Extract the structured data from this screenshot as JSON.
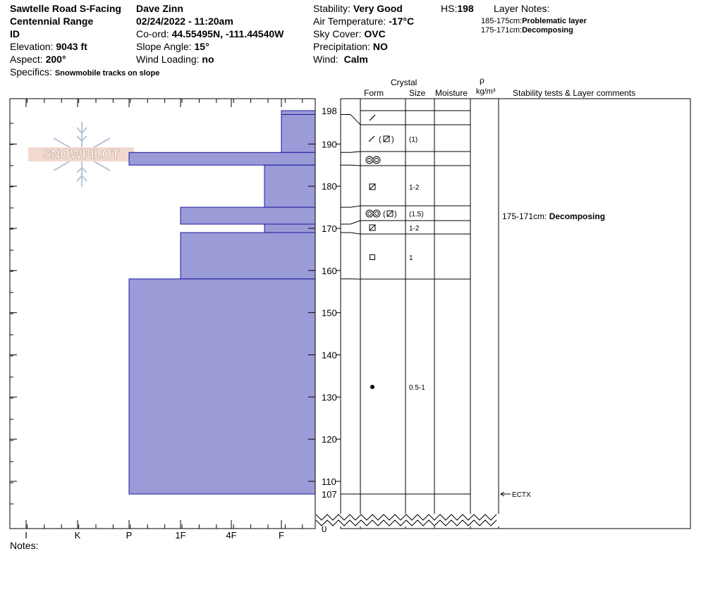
{
  "header": {
    "location": "Sawtelle Road S-Facing",
    "range": "Centennial Range",
    "state": "ID",
    "elevation_label": "Elevation:",
    "elevation": "9043 ft",
    "aspect_label": "Aspect:",
    "aspect": "200°",
    "specifics_label": "Specifics:",
    "specifics": "Snowmobile tracks on slope",
    "observer": "Dave Zinn",
    "datetime": "02/24/2022 - 11:20am",
    "coord_label": "Co-ord:",
    "coord": "44.55495N, -111.44540W",
    "slope_label": "Slope Angle:",
    "slope": "15°",
    "wind_loading_label": "Wind Loading:",
    "wind_loading": "no",
    "stability_label": "Stability:",
    "stability": "Very Good",
    "air_temp_label": "Air Temperature:",
    "air_temp": "-17°C",
    "sky_label": "Sky Cover:",
    "sky": "OVC",
    "precip_label": "Precipitation:",
    "precip": "NO",
    "wind_label": "Wind:",
    "wind": "Calm",
    "hs_label": "HS:",
    "hs": "198",
    "layer_notes_label": "Layer Notes:",
    "layer_notes": [
      {
        "range": "185-175cm:",
        "note": "Problematic layer"
      },
      {
        "range": "175-171cm:",
        "note": "Decomposing"
      }
    ]
  },
  "table_headers": {
    "crystal": "Crystal",
    "form": "Form",
    "size": "Size",
    "moisture": "Moisture",
    "rho": "ρ",
    "density_unit": "kg/m³",
    "comments": "Stability tests & Layer comments"
  },
  "logo_text": "SNOWPILOT",
  "notes_label": "Notes:",
  "colors": {
    "hardness_fill": "#9b9bd8",
    "hardness_edge": "#1a1a9c"
  },
  "chart_data": {
    "type": "bar",
    "subtype": "snow hardness profile",
    "hardness_scale": [
      "I",
      "K",
      "P",
      "1F",
      "4F",
      "F"
    ],
    "depth_ticks": [
      110,
      120,
      130,
      140,
      150,
      160,
      170,
      180,
      190
    ],
    "depth_labels_special": [
      198,
      107,
      0
    ],
    "total_depth": 198,
    "layers": [
      {
        "top": 198,
        "bottom": 197,
        "hardness": "F"
      },
      {
        "top": 197,
        "bottom": 188,
        "hardness": "F"
      },
      {
        "top": 188,
        "bottom": 185,
        "hardness": "P"
      },
      {
        "top": 185,
        "bottom": 175,
        "hardness": "F+"
      },
      {
        "top": 175,
        "bottom": 171,
        "hardness": "1F"
      },
      {
        "top": 171,
        "bottom": 169,
        "hardness": "F+"
      },
      {
        "top": 169,
        "bottom": 158,
        "hardness": "1F"
      },
      {
        "top": 158,
        "bottom": 107,
        "hardness": "P"
      }
    ],
    "crystals": [
      {
        "layer_top": 198,
        "layer_bottom": 197,
        "form": "precip-frag",
        "size": ""
      },
      {
        "layer_top": 197,
        "layer_bottom": 188,
        "form": "precip-frag (facet-rounded)",
        "size": "(1)"
      },
      {
        "layer_top": 188,
        "layer_bottom": 185,
        "form": "melt-freeze",
        "size": ""
      },
      {
        "layer_top": 185,
        "layer_bottom": 175,
        "form": "facet-rounded",
        "size": "1-2"
      },
      {
        "layer_top": 175,
        "layer_bottom": 171,
        "form": "melt-freeze (facet-rounded)",
        "size": "(1.5)"
      },
      {
        "layer_top": 171,
        "layer_bottom": 169,
        "form": "facet-rounded",
        "size": "1-2"
      },
      {
        "layer_top": 169,
        "layer_bottom": 158,
        "form": "facet",
        "size": "1"
      },
      {
        "layer_top": 158,
        "layer_bottom": 107,
        "form": "rounded",
        "size": "0.5-1"
      }
    ],
    "comments": [
      {
        "depth": 173,
        "range": "175-171cm:",
        "text": "Decomposing"
      }
    ],
    "tests": [
      {
        "depth": 107,
        "text": "ECTX"
      }
    ]
  }
}
